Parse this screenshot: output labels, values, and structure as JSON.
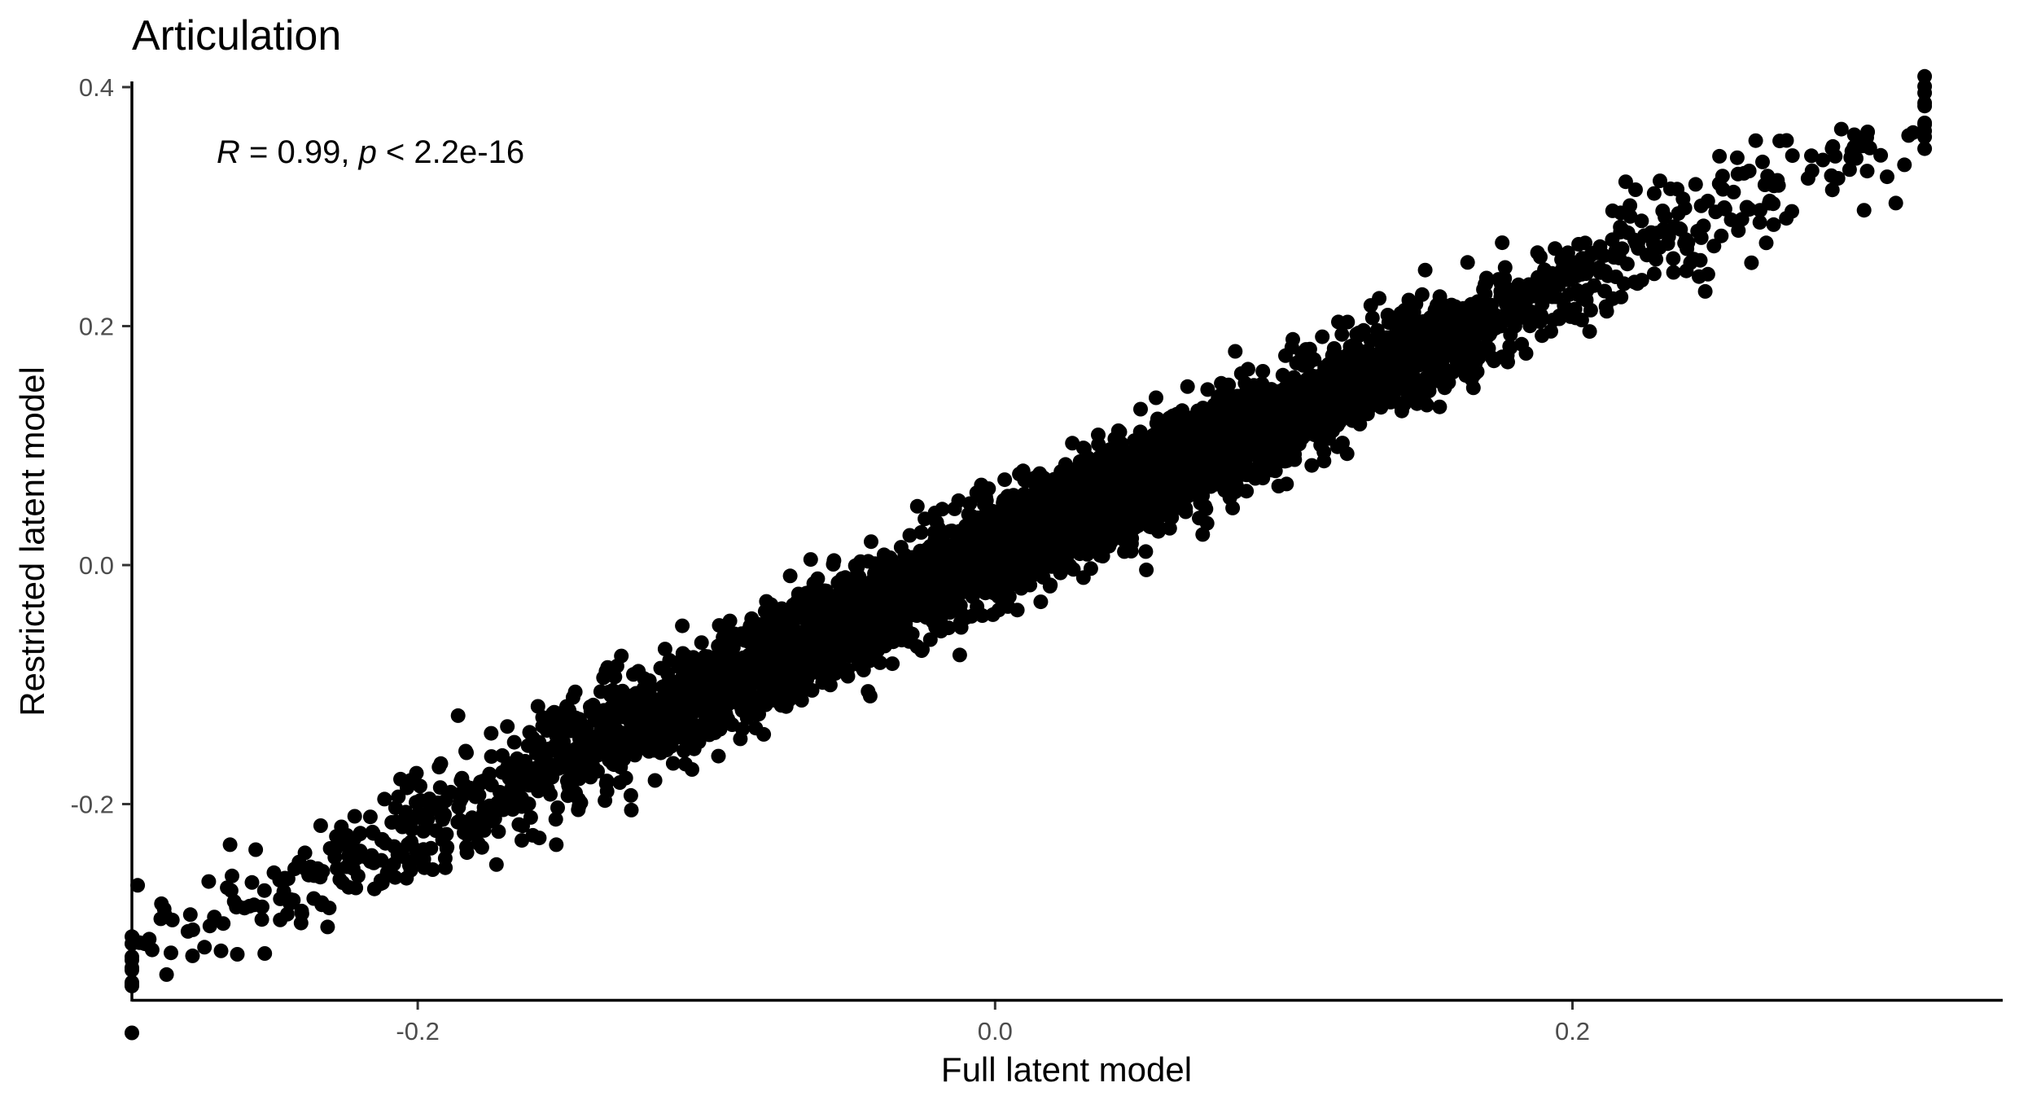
{
  "chart_data": {
    "type": "scatter",
    "title": "Articulation",
    "xlabel": "Full latent model",
    "ylabel": "Restricted latent model",
    "annotation": {
      "r_symbol": "R",
      "r_text": " = 0.99, ",
      "p_symbol": "p",
      "p_text": " < 2.2e-16"
    },
    "xlim": [
      -0.3,
      0.33
    ],
    "ylim": [
      -0.37,
      0.4
    ],
    "xticks": [
      {
        "value": -0.2,
        "label": "-0.2"
      },
      {
        "value": 0.0,
        "label": "0.0"
      },
      {
        "value": 0.2,
        "label": "0.2"
      }
    ],
    "yticks": [
      {
        "value": -0.2,
        "label": "-0.2"
      },
      {
        "value": 0.0,
        "label": "0.0"
      },
      {
        "value": 0.2,
        "label": "0.2"
      },
      {
        "value": 0.4,
        "label": "0.4"
      }
    ],
    "grid": false,
    "point_color": "#000000",
    "trend": {
      "slope": 1.14,
      "intercept": 0.011,
      "x_range": [
        -0.299,
        0.322
      ],
      "spread_sd": 0.022
    },
    "points": [
      [
        -0.299,
        -0.337
      ],
      [
        -0.297,
        -0.268
      ],
      [
        -0.293,
        -0.313
      ],
      [
        -0.292,
        -0.322
      ],
      [
        -0.289,
        -0.296
      ],
      [
        -0.285,
        -0.297
      ],
      [
        -0.278,
        -0.327
      ],
      [
        -0.272,
        -0.302
      ],
      [
        -0.266,
        -0.27
      ],
      [
        -0.26,
        -0.287
      ],
      [
        -0.253,
        -0.325
      ],
      [
        -0.246,
        -0.262
      ],
      [
        -0.239,
        -0.254
      ],
      [
        -0.236,
        -0.279
      ],
      [
        -0.227,
        -0.263
      ],
      [
        -0.221,
        -0.245
      ],
      [
        -0.215,
        -0.271
      ],
      [
        -0.205,
        -0.244
      ],
      [
        -0.198,
        -0.238
      ],
      [
        -0.191,
        -0.211
      ],
      [
        -0.186,
        -0.126
      ],
      [
        -0.179,
        -0.233
      ],
      [
        -0.172,
        -0.223
      ],
      [
        -0.164,
        -0.195
      ],
      [
        -0.158,
        -0.177
      ],
      [
        -0.152,
        -0.234
      ],
      [
        -0.146,
        -0.17
      ],
      [
        -0.138,
        -0.145
      ],
      [
        -0.13,
        -0.182
      ],
      [
        -0.126,
        -0.205
      ],
      [
        -0.118,
        -0.155
      ],
      [
        -0.105,
        -0.171
      ],
      [
        -0.099,
        -0.142
      ],
      [
        -0.09,
        -0.092
      ],
      [
        -0.085,
        -0.12
      ],
      [
        -0.073,
        -0.112
      ],
      [
        -0.058,
        -0.089
      ],
      [
        -0.051,
        -0.093
      ],
      [
        -0.04,
        -0.06
      ],
      [
        -0.03,
        -0.033
      ],
      [
        -0.02,
        -0.04
      ],
      [
        -0.014,
        -0.008
      ],
      [
        -0.005,
        0.025
      ],
      [
        0.003,
        -0.008
      ],
      [
        0.012,
        0.028
      ],
      [
        0.02,
        0.005
      ],
      [
        0.026,
        0.026
      ],
      [
        0.034,
        0.05
      ],
      [
        0.043,
        0.044
      ],
      [
        0.052,
        0.075
      ],
      [
        0.061,
        0.086
      ],
      [
        0.072,
        0.094
      ],
      [
        0.084,
        0.119
      ],
      [
        0.092,
        0.114
      ],
      [
        0.101,
        0.118
      ],
      [
        0.108,
        0.14
      ],
      [
        0.115,
        0.153
      ],
      [
        0.122,
        0.145
      ],
      [
        0.13,
        0.172
      ],
      [
        0.137,
        0.163
      ],
      [
        0.145,
        0.2
      ],
      [
        0.15,
        0.182
      ],
      [
        0.159,
        0.199
      ],
      [
        0.166,
        0.203
      ],
      [
        0.175,
        0.2
      ],
      [
        0.183,
        0.228
      ],
      [
        0.193,
        0.236
      ],
      [
        0.201,
        0.246
      ],
      [
        0.211,
        0.259
      ],
      [
        0.219,
        0.252
      ],
      [
        0.228,
        0.269
      ],
      [
        0.24,
        0.27
      ],
      [
        0.249,
        0.267
      ],
      [
        0.255,
        0.289
      ],
      [
        0.265,
        0.297
      ],
      [
        0.271,
        0.322
      ],
      [
        0.283,
        0.33
      ],
      [
        0.29,
        0.314
      ],
      [
        0.296,
        0.331
      ],
      [
        0.301,
        0.297
      ],
      [
        0.309,
        0.325
      ],
      [
        0.315,
        0.335
      ],
      [
        0.318,
        0.362
      ],
      [
        0.322,
        0.37
      ],
      [
        0.312,
        0.303
      ],
      [
        0.303,
        0.349
      ],
      [
        0.262,
        0.253
      ],
      [
        0.276,
        0.296
      ],
      [
        0.235,
        0.245
      ],
      [
        -0.22,
        -0.225
      ],
      [
        -0.265,
        -0.234
      ],
      [
        -0.196,
        -0.198
      ],
      [
        0.214,
        0.223
      ],
      [
        0.246,
        0.229
      ],
      [
        0.16,
        0.17
      ],
      [
        0.099,
        0.089
      ],
      [
        -0.132,
        -0.167
      ],
      [
        -0.088,
        -0.113
      ],
      [
        0.018,
        0.045
      ],
      [
        0.064,
        0.048
      ]
    ]
  }
}
